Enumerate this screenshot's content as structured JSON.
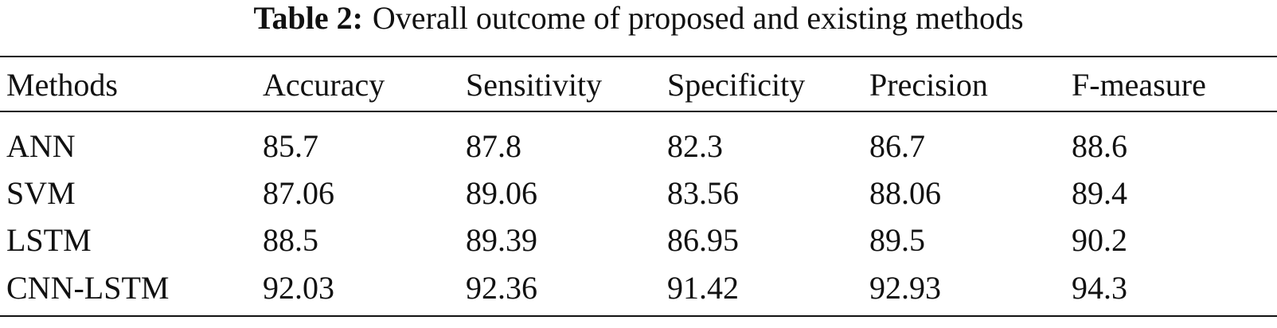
{
  "caption": {
    "label": "Table 2:",
    "text": "Overall outcome of proposed and existing methods"
  },
  "table": {
    "header": [
      "Methods",
      "Accuracy",
      "Sensitivity",
      "Specificity",
      "Precision",
      "F-measure"
    ],
    "rows": [
      [
        "ANN",
        85.7,
        87.8,
        82.3,
        86.7,
        88.6
      ],
      [
        "SVM",
        87.06,
        89.06,
        83.56,
        88.06,
        89.4
      ],
      [
        "LSTM",
        88.5,
        89.39,
        86.95,
        89.5,
        90.2
      ],
      [
        "CNN-LSTM",
        92.03,
        92.36,
        91.42,
        92.93,
        94.3
      ]
    ]
  }
}
